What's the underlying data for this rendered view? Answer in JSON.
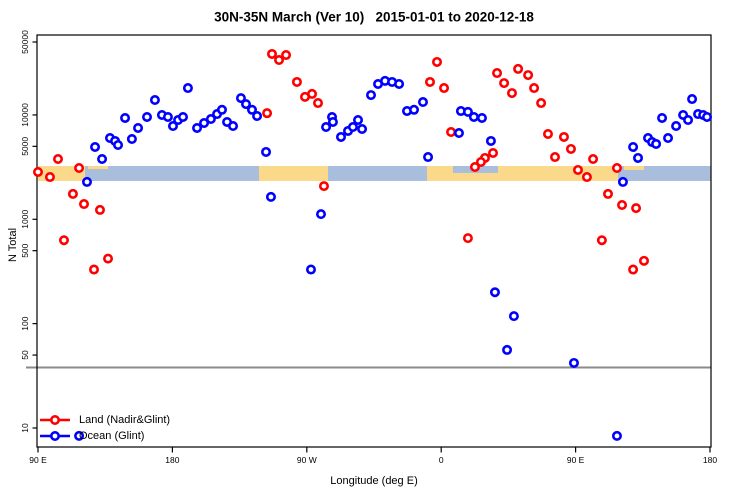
{
  "title": "30N-35N March (Ver 10)   2015-01-01 to 2020-12-18",
  "colors": {
    "land": "#ff0000",
    "ocean": "#0000ff",
    "band_land": "#fbd98a",
    "band_ocean": "#a8bedc",
    "threshold_line": "#8a8a8a",
    "frame": "#000000",
    "marker_fill": "#ffffff"
  },
  "axes": {
    "x": {
      "label": "Longitude (deg E)",
      "note": "longitude axis wraps eastward: 90E, 180, 90W, 0, 90E, 180 (plotted as 90..540 sequential degrees)",
      "ticks": [
        {
          "lon": 90,
          "label": "90 E"
        },
        {
          "lon": 180,
          "label": "180"
        },
        {
          "lon": 270,
          "label": "90 W"
        },
        {
          "lon": 360,
          "label": "0"
        },
        {
          "lon": 450,
          "label": "90 E"
        },
        {
          "lon": 540,
          "label": "180"
        }
      ]
    },
    "y": {
      "label": "N Total",
      "scale": "log10",
      "ticks": [
        {
          "n": 50000,
          "label": "50000"
        },
        {
          "n": 10000,
          "label": "10000"
        },
        {
          "n": 5000,
          "label": "5000"
        },
        {
          "n": 1000,
          "label": "1000"
        },
        {
          "n": 500,
          "label": "500"
        },
        {
          "n": 100,
          "label": "100"
        },
        {
          "n": 50,
          "label": "50"
        },
        {
          "n": 10,
          "label": "10"
        }
      ]
    }
  },
  "legend": [
    {
      "label": "Land (Nadir&Glint)",
      "color": "#ff0000"
    },
    {
      "label": "Ocean (Glint)",
      "color": "#0000ff"
    }
  ],
  "chart_data": {
    "type": "scatter",
    "title": "30N-35N March (Ver 10)   2015-01-01 to 2020-12-18",
    "xlabel": "Longitude (deg E)",
    "ylabel": "N Total",
    "x_unit": "deg E, sequential 90 to 540 (wraps through 180/-180 and 0)",
    "y_scale": "log10",
    "ylim": [
      6.5,
      58000
    ],
    "xlim": [
      90,
      540.6
    ],
    "marker": "open-circle",
    "series": [
      {
        "name": "Land (Nadir&Glint)",
        "color": "#ff0000",
        "points": [
          [
            103.4,
            3780
          ],
          [
            90,
            2840
          ],
          [
            98,
            2540
          ],
          [
            117.5,
            3100
          ],
          [
            113.4,
            1750
          ],
          [
            120.8,
            1400
          ],
          [
            131.5,
            1230
          ],
          [
            107.4,
            630
          ],
          [
            136.9,
            420
          ],
          [
            127.5,
            330
          ],
          [
            243.4,
            10400
          ],
          [
            246.7,
            38400
          ],
          [
            251.4,
            33600
          ],
          [
            256.1,
            37500
          ],
          [
            263.4,
            20700
          ],
          [
            268.8,
            14900
          ],
          [
            273.5,
            15900
          ],
          [
            277.5,
            13000
          ],
          [
            281.5,
            2080
          ],
          [
            357.2,
            32200
          ],
          [
            352.5,
            20700
          ],
          [
            361.9,
            18100
          ],
          [
            366.6,
            6860
          ],
          [
            394.7,
            4320
          ],
          [
            389.3,
            3870
          ],
          [
            386.6,
            3540
          ],
          [
            382.6,
            3170
          ],
          [
            377.9,
            660
          ],
          [
            397.4,
            25200
          ],
          [
            402.1,
            20200
          ],
          [
            407.4,
            16200
          ],
          [
            411.5,
            27600
          ],
          [
            418.2,
            24100
          ],
          [
            422.2,
            18100
          ],
          [
            426.9,
            13000
          ],
          [
            431.5,
            6570
          ],
          [
            442.2,
            6150
          ],
          [
            446.9,
            4720
          ],
          [
            436.2,
            3950
          ],
          [
            461.7,
            3780
          ],
          [
            451.6,
            2970
          ],
          [
            457.6,
            2540
          ],
          [
            477.7,
            3100
          ],
          [
            471.7,
            1750
          ],
          [
            481.1,
            1370
          ],
          [
            490.5,
            1280
          ],
          [
            467.6,
            630
          ],
          [
            495.8,
            400
          ],
          [
            488.5,
            330
          ]
        ]
      },
      {
        "name": "Ocean (Glint)",
        "color": "#0000ff",
        "points": [
          [
            122.8,
            2280
          ],
          [
            128.2,
            4930
          ],
          [
            132.9,
            3780
          ],
          [
            138.2,
            6010
          ],
          [
            141.6,
            5630
          ],
          [
            143.6,
            5150
          ],
          [
            148.3,
            9350
          ],
          [
            152.9,
            5880
          ],
          [
            157.0,
            7500
          ],
          [
            163.0,
            9560
          ],
          [
            168.3,
            13900
          ],
          [
            173.0,
            9990
          ],
          [
            177.0,
            9560
          ],
          [
            180.4,
            7830
          ],
          [
            183.8,
            8940
          ],
          [
            187.1,
            9560
          ],
          [
            190.4,
            18100
          ],
          [
            196.5,
            7500
          ],
          [
            201.2,
            8370
          ],
          [
            205.8,
            9140
          ],
          [
            209.9,
            10200
          ],
          [
            213.2,
            11200
          ],
          [
            216.6,
            8560
          ],
          [
            220.6,
            7830
          ],
          [
            225.9,
            14500
          ],
          [
            229.3,
            12700
          ],
          [
            233.3,
            11200
          ],
          [
            236.7,
            9770
          ],
          [
            242.7,
            4420
          ],
          [
            246.0,
            1640
          ],
          [
            272.8,
            330
          ],
          [
            279.5,
            1120
          ],
          [
            282.9,
            7660
          ],
          [
            286.9,
            9560
          ],
          [
            287.5,
            8560
          ],
          [
            292.9,
            6150
          ],
          [
            297.6,
            7020
          ],
          [
            300.9,
            7660
          ],
          [
            304.3,
            8940
          ],
          [
            307.0,
            7330
          ],
          [
            313.0,
            15500
          ],
          [
            317.7,
            19800
          ],
          [
            322.4,
            21200
          ],
          [
            327.1,
            20700
          ],
          [
            331.8,
            19800
          ],
          [
            337.1,
            10900
          ],
          [
            341.8,
            11200
          ],
          [
            347.8,
            13300
          ],
          [
            351.2,
            3950
          ],
          [
            371.9,
            6710
          ],
          [
            373.2,
            10900
          ],
          [
            377.9,
            10700
          ],
          [
            381.9,
            9560
          ],
          [
            387.3,
            9350
          ],
          [
            393.3,
            5630
          ],
          [
            396.0,
            200
          ],
          [
            404.1,
            56
          ],
          [
            408.7,
            118
          ],
          [
            448.9,
            42
          ],
          [
            477.7,
            8.4
          ],
          [
            481.7,
            2280
          ],
          [
            488.5,
            4930
          ],
          [
            491.8,
            3870
          ],
          [
            498.5,
            6010
          ],
          [
            501.2,
            5500
          ],
          [
            503.9,
            5270
          ],
          [
            507.9,
            9350
          ],
          [
            511.9,
            6010
          ],
          [
            517.3,
            7830
          ],
          [
            522.0,
            9990
          ],
          [
            525.3,
            8940
          ],
          [
            528.0,
            14200
          ],
          [
            532.0,
            10200
          ],
          [
            535.4,
            9990
          ],
          [
            538.0,
            9560
          ],
          [
            117.5,
            8.4
          ]
        ]
      }
    ],
    "band": {
      "description": "horizontal expected-count band; sandy segments over land longitudes, blue-gray over ocean",
      "n_range": [
        2330,
        3240
      ],
      "segments": [
        {
          "from": 90.0,
          "to": 121.5,
          "surface": "land",
          "color": "#fbd98a"
        },
        {
          "from": 121.5,
          "to": 238.0,
          "surface": "ocean",
          "color": "#a8bedc"
        },
        {
          "from": 238.0,
          "to": 284.2,
          "surface": "land",
          "color": "#fbd98a"
        },
        {
          "from": 284.2,
          "to": 350.5,
          "surface": "ocean",
          "color": "#a8bedc"
        },
        {
          "from": 350.5,
          "to": 478.4,
          "surface": "land",
          "color": "#fbd98a"
        },
        {
          "from": 478.4,
          "to": 540.6,
          "surface": "ocean",
          "color": "#a8bedc"
        }
      ],
      "overlays": [
        {
          "from": 367.9,
          "to": 398.0,
          "color": "#a8bedc",
          "n_range": [
            2780,
            3240
          ]
        },
        {
          "from": 482.4,
          "to": 495.8,
          "color": "#fbd98a",
          "n_range": [
            2970,
            3240
          ]
        },
        {
          "from": 123.5,
          "to": 136.9,
          "color": "#fbd98a",
          "n_range": [
            3030,
            3240
          ]
        }
      ]
    },
    "threshold_line": {
      "n": 38,
      "color": "#8a8a8a"
    }
  }
}
